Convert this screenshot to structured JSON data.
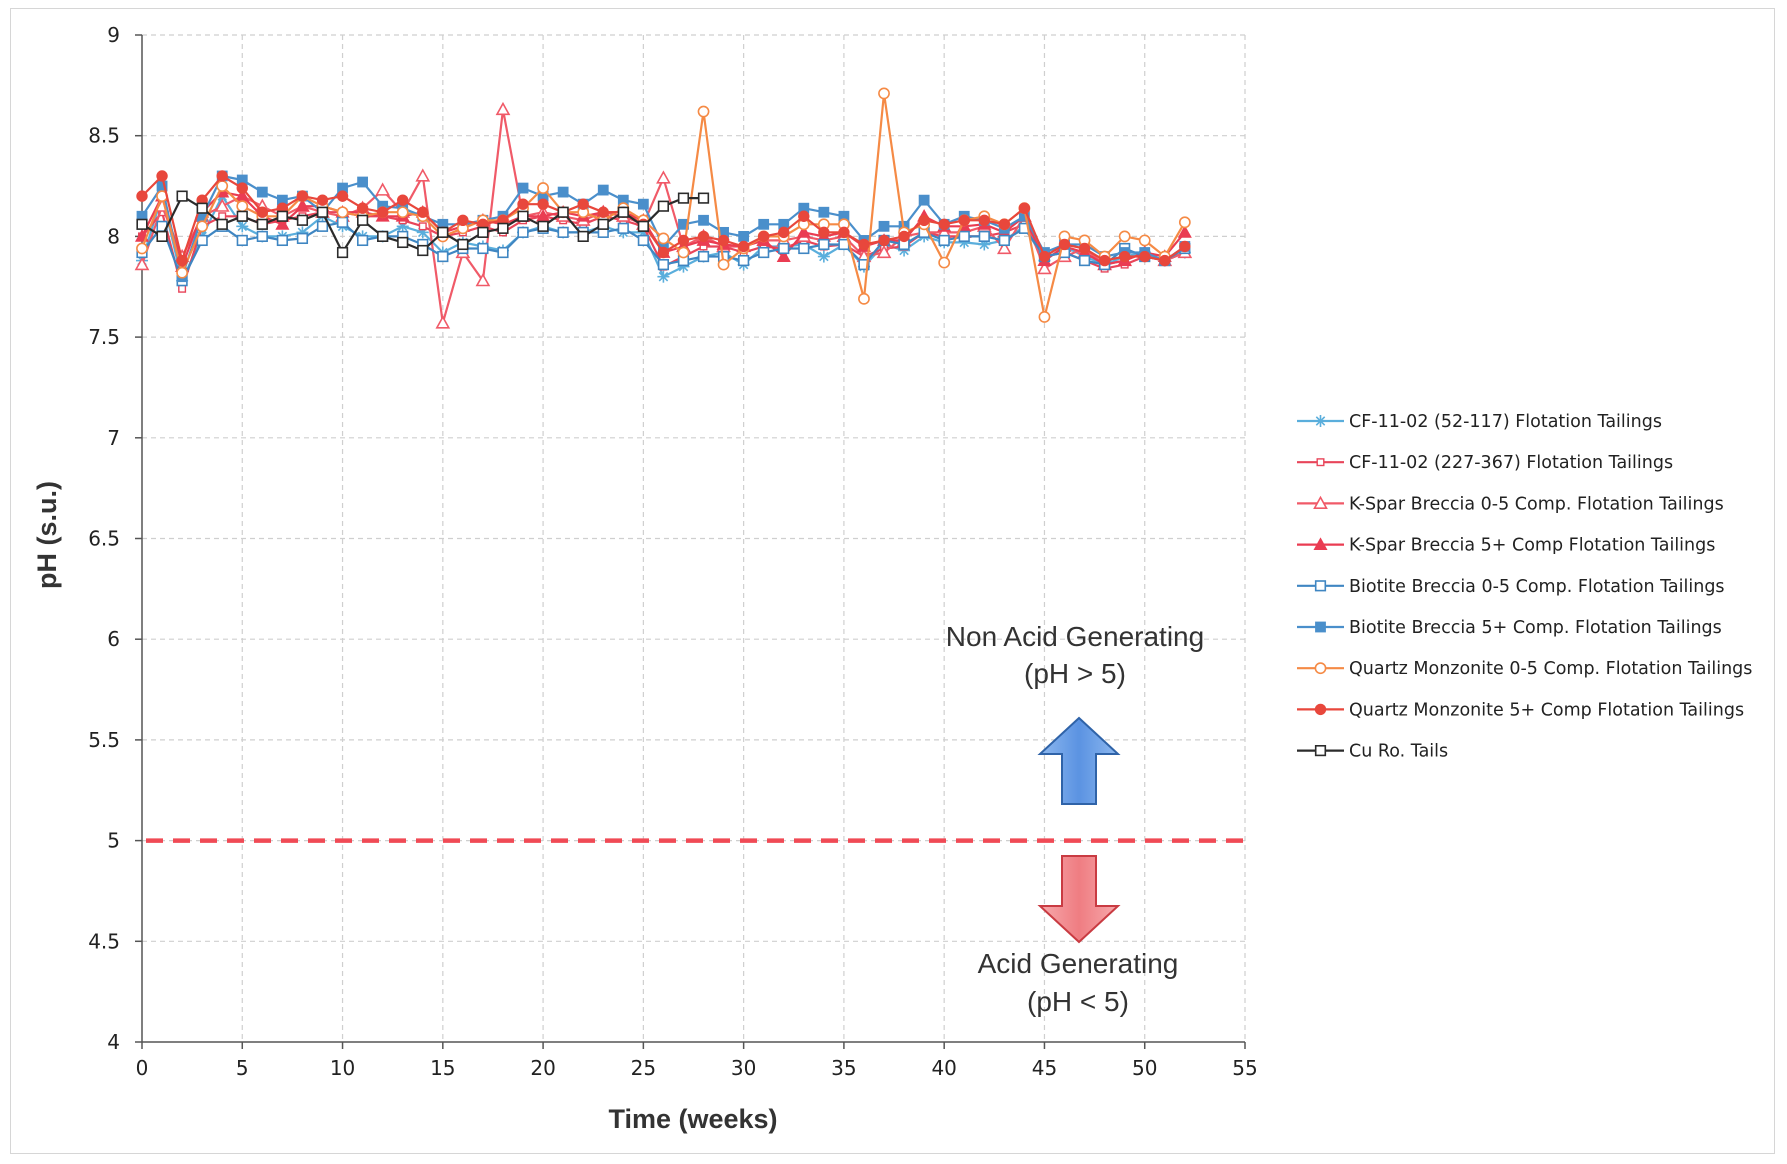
{
  "chart_data": {
    "type": "line",
    "title": "",
    "xlabel": "Time (weeks)",
    "ylabel": "pH (s.u.)",
    "xlim": [
      0,
      55
    ],
    "ylim": [
      4,
      9
    ],
    "xticks": [
      0,
      5,
      10,
      15,
      20,
      25,
      30,
      35,
      40,
      45,
      50,
      55
    ],
    "xtick_labels": [
      "0",
      "5",
      "10",
      "15",
      "20",
      "25",
      "30",
      "35",
      "40",
      "45",
      "50",
      "55"
    ],
    "yticks": [
      4,
      4.5,
      5,
      5.5,
      6,
      6.5,
      7,
      7.5,
      8,
      8.5,
      9
    ],
    "ytick_labels": [
      "4",
      "4.5",
      "5",
      "5.5",
      "6",
      "6.5",
      "7",
      "7.5",
      "8",
      "8.5",
      "9"
    ],
    "grid": true,
    "legend_position": "right",
    "threshold": {
      "y": 5,
      "color": "#f04a55",
      "style": "dashed"
    },
    "annotations": {
      "non_acid_line1": "Non Acid Generating",
      "non_acid_line2": "(pH > 5)",
      "acid_line1": "Acid Generating",
      "acid_line2": "(pH < 5)"
    },
    "series": [
      {
        "name": "CF-11-02 (52-117) Flotation Tailings",
        "color": "#5aaedc",
        "marker": "asterisk",
        "x": [
          0,
          1,
          2,
          3,
          4,
          5,
          6,
          7,
          8,
          9,
          10,
          11,
          12,
          13,
          14,
          15,
          16,
          17,
          18,
          19,
          20,
          21,
          22,
          23,
          24,
          25,
          26,
          27,
          28,
          29,
          30,
          31,
          32,
          33,
          34,
          35,
          36,
          37,
          38,
          39,
          40,
          41,
          42,
          43,
          44,
          45,
          46,
          47,
          48,
          49,
          50,
          51,
          52
        ],
        "y": [
          7.88,
          8.2,
          7.78,
          8.0,
          8.2,
          8.05,
          8.0,
          8.0,
          8.02,
          8.1,
          8.05,
          8.0,
          8.0,
          8.05,
          8.02,
          7.92,
          7.97,
          7.95,
          7.93,
          8.02,
          8.05,
          8.02,
          8.02,
          8.05,
          8.02,
          8.02,
          7.8,
          7.85,
          7.9,
          7.92,
          7.86,
          7.95,
          7.95,
          7.96,
          7.9,
          7.96,
          7.85,
          7.96,
          7.93,
          8.0,
          7.97,
          7.97,
          7.96,
          7.98,
          8.05,
          7.88,
          7.95,
          7.9,
          7.86,
          7.9,
          7.92,
          7.88,
          7.92
        ]
      },
      {
        "name": "CF-11-02 (227-367) Flotation Tailings",
        "color": "#e8455a",
        "marker": "square-small",
        "x": [
          0,
          1,
          2,
          3,
          4,
          5,
          6,
          7,
          8,
          9,
          10,
          11,
          12,
          13,
          14,
          15,
          16,
          17,
          18,
          19,
          20,
          21,
          22,
          23,
          24,
          25,
          26,
          27,
          28,
          29,
          30,
          31,
          32,
          33,
          34,
          35,
          36,
          37,
          38,
          39,
          40,
          41,
          42,
          43,
          44,
          45,
          46,
          47,
          48,
          49,
          50,
          51,
          52
        ],
        "y": [
          8.0,
          8.12,
          7.74,
          8.05,
          8.1,
          8.1,
          8.06,
          8.08,
          8.1,
          8.12,
          8.12,
          8.1,
          8.1,
          8.08,
          8.05,
          8.0,
          8.02,
          8.05,
          8.02,
          8.08,
          8.1,
          8.08,
          8.06,
          8.1,
          8.08,
          8.05,
          7.85,
          7.9,
          7.95,
          7.95,
          7.92,
          7.95,
          7.94,
          7.98,
          7.95,
          7.96,
          7.9,
          7.94,
          7.95,
          8.02,
          8.0,
          8.0,
          8.0,
          8.02,
          8.06,
          7.9,
          7.92,
          7.88,
          7.84,
          7.86,
          7.9,
          7.88,
          7.92
        ]
      },
      {
        "name": "K-Spar Breccia 0-5 Comp. Flotation Tailings",
        "color": "#f05a68",
        "marker": "triangle-open",
        "x": [
          0,
          1,
          2,
          3,
          4,
          5,
          6,
          7,
          8,
          9,
          10,
          11,
          12,
          13,
          14,
          15,
          16,
          17,
          18,
          19,
          20,
          21,
          22,
          23,
          24,
          25,
          26,
          27,
          28,
          29,
          30,
          31,
          32,
          33,
          34,
          35,
          36,
          37,
          38,
          39,
          40,
          41,
          42,
          43,
          44,
          45,
          46,
          47,
          48,
          49,
          50,
          51,
          52
        ],
        "y": [
          7.86,
          8.15,
          7.9,
          8.1,
          8.15,
          8.2,
          8.15,
          8.1,
          8.15,
          8.12,
          8.1,
          8.14,
          8.23,
          8.12,
          8.3,
          7.57,
          7.92,
          7.78,
          8.63,
          8.1,
          8.12,
          8.1,
          8.08,
          8.12,
          8.1,
          8.06,
          8.29,
          7.95,
          8.0,
          7.95,
          7.95,
          7.98,
          7.98,
          8.0,
          7.98,
          8.0,
          7.9,
          7.92,
          8.0,
          8.02,
          8.02,
          8.02,
          8.05,
          7.94,
          8.1,
          7.84,
          7.9,
          7.94,
          7.86,
          7.88,
          7.92,
          7.88,
          7.92
        ]
      },
      {
        "name": "K-Spar Breccia 5+ Comp Flotation Tailings",
        "color": "#ea3c52",
        "marker": "triangle-filled",
        "x": [
          0,
          1,
          2,
          3,
          4,
          5,
          6,
          7,
          8,
          9,
          10,
          11,
          12,
          13,
          14,
          15,
          16,
          17,
          18,
          19,
          20,
          21,
          22,
          23,
          24,
          25,
          26,
          27,
          28,
          29,
          30,
          31,
          32,
          33,
          34,
          35,
          36,
          37,
          38,
          39,
          40,
          41,
          42,
          43,
          44,
          45,
          46,
          47,
          48,
          49,
          50,
          51,
          52
        ],
        "y": [
          8.0,
          8.2,
          7.85,
          8.12,
          8.22,
          8.2,
          8.1,
          8.06,
          8.15,
          8.15,
          8.12,
          8.12,
          8.1,
          8.1,
          8.12,
          8.02,
          8.05,
          8.08,
          8.06,
          8.1,
          8.1,
          8.12,
          8.1,
          8.12,
          8.12,
          8.08,
          7.92,
          7.95,
          7.98,
          7.96,
          7.95,
          7.98,
          7.9,
          8.02,
          8.0,
          8.02,
          7.95,
          7.98,
          7.98,
          8.1,
          8.05,
          8.05,
          8.06,
          8.02,
          8.1,
          7.88,
          7.95,
          7.92,
          7.86,
          7.88,
          7.92,
          7.9,
          8.02
        ]
      },
      {
        "name": "Biotite Breccia 0-5 Comp. Flotation Tailings",
        "color": "#3f86c2",
        "marker": "square-open",
        "x": [
          0,
          1,
          2,
          3,
          4,
          5,
          6,
          7,
          8,
          9,
          10,
          11,
          12,
          13,
          14,
          15,
          16,
          17,
          18,
          19,
          20,
          21,
          22,
          23,
          24,
          25,
          26,
          27,
          28,
          29,
          30,
          31,
          32,
          33,
          34,
          35,
          36,
          37,
          38,
          39,
          40,
          41,
          42,
          43,
          44,
          45,
          46,
          47,
          48,
          49,
          50,
          51,
          52
        ],
        "y": [
          7.92,
          8.05,
          7.78,
          7.98,
          8.05,
          7.98,
          8.0,
          7.98,
          7.99,
          8.05,
          8.07,
          7.98,
          8.0,
          8.0,
          7.96,
          7.9,
          7.94,
          7.94,
          7.92,
          8.02,
          8.04,
          8.02,
          8.02,
          8.02,
          8.04,
          7.98,
          7.86,
          7.88,
          7.9,
          7.9,
          7.88,
          7.92,
          7.94,
          7.94,
          7.96,
          7.96,
          7.86,
          7.98,
          7.96,
          8.02,
          7.98,
          8.0,
          8.0,
          7.98,
          8.04,
          7.9,
          7.92,
          7.88,
          7.86,
          7.94,
          7.9,
          7.88,
          7.94
        ]
      },
      {
        "name": "Biotite Breccia 5+ Comp. Flotation Tailings",
        "color": "#4a8fcb",
        "marker": "square-filled",
        "x": [
          0,
          1,
          2,
          3,
          4,
          5,
          6,
          7,
          8,
          9,
          10,
          11,
          12,
          13,
          14,
          15,
          16,
          17,
          18,
          19,
          20,
          21,
          22,
          23,
          24,
          25,
          26,
          27,
          28,
          29,
          30,
          31,
          32,
          33,
          34,
          35,
          36,
          37,
          38,
          39,
          40,
          41,
          42,
          43,
          44,
          45,
          46,
          47,
          48,
          49,
          50,
          51,
          52
        ],
        "y": [
          8.1,
          8.25,
          7.8,
          8.1,
          8.3,
          8.28,
          8.22,
          8.18,
          8.2,
          8.12,
          8.24,
          8.27,
          8.15,
          8.14,
          8.1,
          8.06,
          8.06,
          8.08,
          8.1,
          8.24,
          8.2,
          8.22,
          8.16,
          8.23,
          8.18,
          8.16,
          7.95,
          8.06,
          8.08,
          8.02,
          8.0,
          8.06,
          8.06,
          8.14,
          8.12,
          8.1,
          7.98,
          8.05,
          8.05,
          8.18,
          8.06,
          8.1,
          8.08,
          8.04,
          8.1,
          7.92,
          7.96,
          7.96,
          7.9,
          7.92,
          7.92,
          7.88,
          7.95
        ]
      },
      {
        "name": "Quartz Monzonite 0-5 Comp. Flotation Tailings",
        "color": "#f58a45",
        "marker": "circle-open",
        "x": [
          0,
          1,
          2,
          3,
          4,
          5,
          6,
          7,
          8,
          9,
          10,
          11,
          12,
          13,
          14,
          15,
          16,
          17,
          18,
          19,
          20,
          21,
          22,
          23,
          24,
          25,
          26,
          27,
          28,
          29,
          30,
          31,
          32,
          33,
          34,
          35,
          36,
          37,
          38,
          39,
          40,
          41,
          42,
          43,
          44,
          45,
          46,
          47,
          48,
          49,
          50,
          51,
          52
        ],
        "y": [
          7.94,
          8.2,
          7.82,
          8.05,
          8.25,
          8.15,
          8.1,
          8.1,
          8.2,
          8.15,
          8.12,
          8.1,
          8.12,
          8.12,
          8.1,
          8.0,
          8.04,
          8.08,
          8.08,
          8.14,
          8.24,
          8.12,
          8.12,
          8.08,
          8.14,
          8.08,
          7.99,
          7.92,
          8.62,
          7.86,
          7.94,
          8.0,
          8.0,
          8.06,
          8.06,
          8.06,
          7.69,
          8.71,
          8.02,
          8.06,
          7.87,
          8.08,
          8.1,
          8.06,
          8.14,
          7.6,
          8.0,
          7.98,
          7.9,
          8.0,
          7.98,
          7.9,
          8.07
        ]
      },
      {
        "name": "Quartz Monzonite 5+ Comp Flotation Tailings",
        "color": "#e8473c",
        "marker": "circle-filled",
        "x": [
          0,
          1,
          2,
          3,
          4,
          5,
          6,
          7,
          8,
          9,
          10,
          11,
          12,
          13,
          14,
          15,
          16,
          17,
          18,
          19,
          20,
          21,
          22,
          23,
          24,
          25,
          26,
          27,
          28,
          29,
          30,
          31,
          32,
          33,
          34,
          35,
          36,
          37,
          38,
          39,
          40,
          41,
          42,
          43,
          44,
          45,
          46,
          47,
          48,
          49,
          50,
          51,
          52
        ],
        "y": [
          8.2,
          8.3,
          7.88,
          8.18,
          8.3,
          8.24,
          8.12,
          8.14,
          8.2,
          8.18,
          8.2,
          8.14,
          8.12,
          8.18,
          8.12,
          8.02,
          8.08,
          8.06,
          8.08,
          8.16,
          8.16,
          8.12,
          8.16,
          8.12,
          8.12,
          8.06,
          7.92,
          7.98,
          8.0,
          7.98,
          7.95,
          8.0,
          8.02,
          8.1,
          8.02,
          8.02,
          7.96,
          7.98,
          8.0,
          8.08,
          8.06,
          8.08,
          8.08,
          8.06,
          8.14,
          7.9,
          7.96,
          7.94,
          7.88,
          7.9,
          7.9,
          7.88,
          7.95
        ]
      },
      {
        "name": "Cu Ro. Tails",
        "color": "#2b2b2b",
        "marker": "square-open",
        "x": [
          0,
          1,
          2,
          3,
          4,
          5,
          6,
          7,
          8,
          9,
          10,
          11,
          12,
          13,
          14,
          15,
          16,
          17,
          18,
          19,
          20,
          21,
          22,
          23,
          24,
          25,
          26,
          27,
          28
        ],
        "y": [
          8.06,
          8.0,
          8.2,
          8.14,
          8.06,
          8.1,
          8.06,
          8.1,
          8.08,
          8.12,
          7.92,
          8.08,
          8.0,
          7.97,
          7.93,
          8.02,
          7.96,
          8.02,
          8.04,
          8.1,
          8.05,
          8.12,
          8.0,
          8.06,
          8.12,
          8.05,
          8.15,
          8.19,
          8.19
        ]
      }
    ]
  }
}
